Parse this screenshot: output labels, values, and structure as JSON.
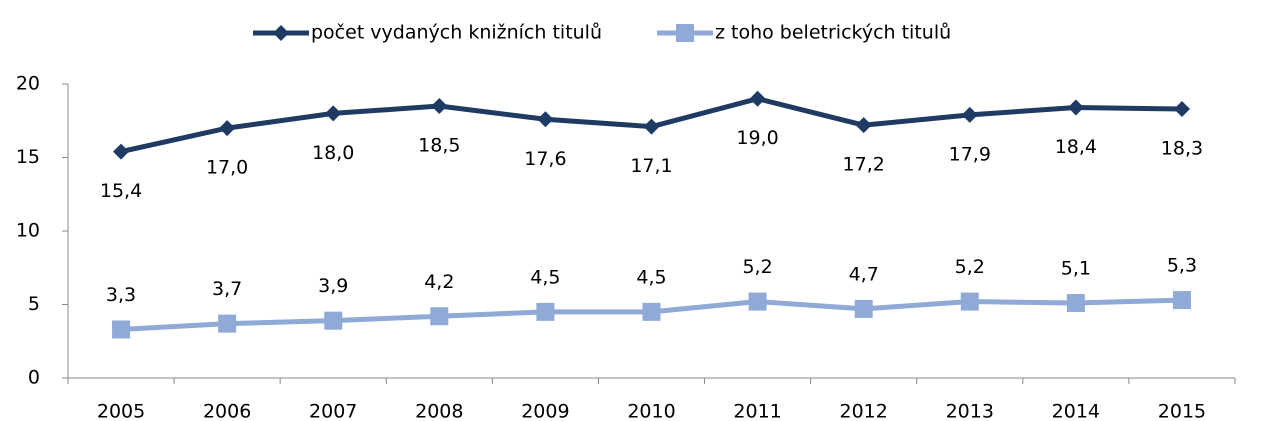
{
  "chart_data": {
    "type": "line",
    "categories": [
      "2005",
      "2006",
      "2007",
      "2008",
      "2009",
      "2010",
      "2011",
      "2012",
      "2013",
      "2014",
      "2015"
    ],
    "series": [
      {
        "name": "počet vydaných knižních titulů",
        "color": "#1f3a63",
        "marker": "diamond",
        "values": [
          15.4,
          17.0,
          18.0,
          18.5,
          17.6,
          17.1,
          19.0,
          17.2,
          17.9,
          18.4,
          18.3
        ],
        "value_labels": [
          "15,4",
          "17,0",
          "18,0",
          "18,5",
          "17,6",
          "17,1",
          "19,0",
          "17,2",
          "17,9",
          "18,4",
          "18,3"
        ]
      },
      {
        "name": "z toho beletrických titulů",
        "color": "#8faad6",
        "marker": "square",
        "values": [
          3.3,
          3.7,
          3.9,
          4.2,
          4.5,
          4.5,
          5.2,
          4.7,
          5.2,
          5.1,
          5.3
        ],
        "value_labels": [
          "3,3",
          "3,7",
          "3,9",
          "4,2",
          "4,5",
          "4,5",
          "5,2",
          "4,7",
          "5,2",
          "5,1",
          "5,3"
        ]
      }
    ],
    "ylim": [
      0,
      20
    ],
    "yticks": [
      0,
      5,
      10,
      15,
      20
    ],
    "grid": false,
    "legend": "top"
  }
}
